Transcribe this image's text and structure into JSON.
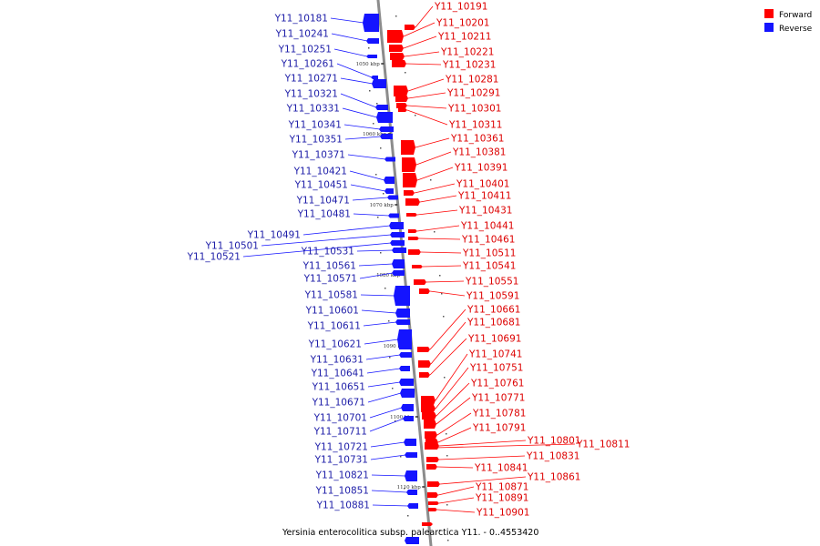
{
  "colors": {
    "forward": "#ff0000",
    "reverse": "#1414ff",
    "forward_label": "#dd0000",
    "reverse_label": "#1e1ea8",
    "backbone": "#8c8c8c"
  },
  "legend": [
    {
      "label": "Forward",
      "color": "#ff0000"
    },
    {
      "label": "Reverse",
      "color": "#1414ff"
    }
  ],
  "caption": "Yersinia enterocolitica subsp. palearctica Y11. - 0..4553420",
  "ticks": [
    "1050 kbp",
    "1060 kbp",
    "1070 kbp",
    "1080 kbp",
    "1090 kbp",
    "1100 kbp",
    "1110 kbp"
  ],
  "genes_forward": [
    "Y11_10191",
    "Y11_10201",
    "Y11_10211",
    "Y11_10221",
    "Y11_10231",
    "Y11_10281",
    "Y11_10291",
    "Y11_10301",
    "Y11_10311",
    "Y11_10361",
    "Y11_10381",
    "Y11_10391",
    "Y11_10401",
    "Y11_10411",
    "Y11_10431",
    "Y11_10441",
    "Y11_10461",
    "Y11_10511",
    "Y11_10541",
    "Y11_10551",
    "Y11_10591",
    "Y11_10661",
    "Y11_10681",
    "Y11_10691",
    "Y11_10741",
    "Y11_10751",
    "Y11_10761",
    "Y11_10771",
    "Y11_10781",
    "Y11_10791",
    "Y11_10801",
    "Y11_10811",
    "Y11_10831",
    "Y11_10841",
    "Y11_10861",
    "Y11_10871",
    "Y11_10891",
    "Y11_10901"
  ],
  "genes_reverse": [
    "Y11_10181",
    "Y11_10241",
    "Y11_10251",
    "Y11_10261",
    "Y11_10271",
    "Y11_10321",
    "Y11_10331",
    "Y11_10341",
    "Y11_10351",
    "Y11_10371",
    "Y11_10421",
    "Y11_10451",
    "Y11_10471",
    "Y11_10481",
    "Y11_10491",
    "Y11_10501",
    "Y11_10521",
    "Y11_10531",
    "Y11_10561",
    "Y11_10571",
    "Y11_10581",
    "Y11_10601",
    "Y11_10611",
    "Y11_10621",
    "Y11_10631",
    "Y11_10641",
    "Y11_10651",
    "Y11_10671",
    "Y11_10701",
    "Y11_10711",
    "Y11_10721",
    "Y11_10731",
    "Y11_10821",
    "Y11_10851",
    "Y11_10881"
  ]
}
